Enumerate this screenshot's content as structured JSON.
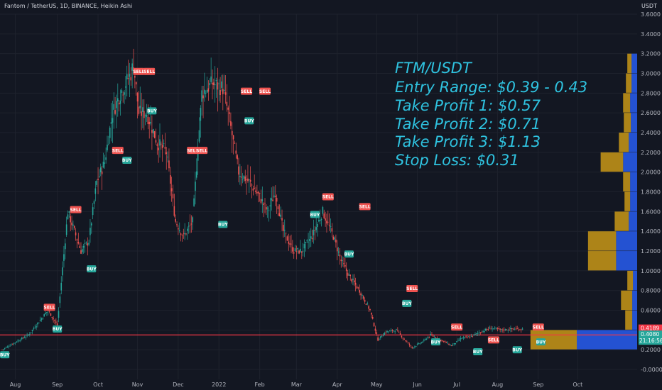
{
  "header": {
    "symbol_line": "Fantom / TetherUS, 1D, BINANCE, Heikin Ashi",
    "quote_currency": "USDT"
  },
  "annotation": {
    "lines": [
      "FTM/USDT",
      "Entry Range: $0.39 - 0.43",
      "Take Profit 1: $0.57",
      "Take Profit 2: $0.71",
      "Take Profit 3: $1.13",
      "Stop Loss: $0.31"
    ]
  },
  "price_labels": {
    "upper": "0.4189",
    "current": "0.4080",
    "countdown": "21:16:56"
  },
  "colors": {
    "background": "#131722",
    "up": "#26a69a",
    "down": "#ef5350",
    "annotation": "#2fc3e0",
    "buy": "#26a69a",
    "sell": "#ef5350",
    "vp_up": "#2962ff",
    "vp_down": "#d4a017",
    "hline": "#f23645"
  },
  "chart_data": {
    "type": "candlestick",
    "title": "Fantom / TetherUS, 1D, BINANCE, Heikin Ashi",
    "ylabel": "USDT",
    "ylim": [
      -0.1,
      3.6
    ],
    "y_ticks": [
      "3.6000",
      "3.4000",
      "3.2000",
      "3.0000",
      "2.8000",
      "2.6000",
      "2.4000",
      "2.2000",
      "2.0000",
      "1.8000",
      "1.6000",
      "1.4000",
      "1.2000",
      "1.0000",
      "0.8000",
      "0.6000",
      "0.4000",
      "0.2000",
      "-0.0000"
    ],
    "y_tick_values": [
      3.6,
      3.4,
      3.2,
      3.0,
      2.8,
      2.6,
      2.4,
      2.2,
      2.0,
      1.8,
      1.6,
      1.4,
      1.2,
      1.0,
      0.8,
      0.6,
      0.4,
      0.2,
      0.0
    ],
    "x_ticks": [
      "Aug",
      "Sep",
      "Oct",
      "Nov",
      "Dec",
      "2022",
      "Feb",
      "Mar",
      "Apr",
      "May",
      "Jun",
      "Jul",
      "Aug",
      "Sep",
      "Oct"
    ],
    "x_tick_index": [
      10,
      42,
      73,
      103,
      134,
      165,
      196,
      224,
      255,
      285,
      316,
      346,
      377,
      408,
      438
    ],
    "horizontal_line": 0.35,
    "price_path": {
      "index": [
        0,
        20,
        35,
        42,
        50,
        60,
        66,
        72,
        78,
        84,
        90,
        98,
        100,
        104,
        110,
        118,
        125,
        132,
        138,
        145,
        152,
        160,
        168,
        172,
        176,
        180,
        188,
        196,
        202,
        208,
        214,
        222,
        228,
        236,
        244,
        252,
        258,
        264,
        272,
        280,
        286,
        292,
        300,
        305,
        312,
        320,
        326,
        334,
        342,
        350,
        356,
        364,
        372,
        380,
        388,
        396
      ],
      "price": [
        0.2,
        0.35,
        0.6,
        0.45,
        1.6,
        1.2,
        1.3,
        1.9,
        2.1,
        2.6,
        2.8,
        3.0,
        3.1,
        2.6,
        2.6,
        2.3,
        2.2,
        1.5,
        1.35,
        1.5,
        2.8,
        2.9,
        2.85,
        2.6,
        2.3,
        2.0,
        1.9,
        1.75,
        1.6,
        1.8,
        1.4,
        1.2,
        1.2,
        1.35,
        1.6,
        1.35,
        1.1,
        0.95,
        0.8,
        0.6,
        0.3,
        0.38,
        0.4,
        0.32,
        0.22,
        0.28,
        0.35,
        0.3,
        0.24,
        0.32,
        0.33,
        0.38,
        0.42,
        0.4,
        0.41,
        0.41
      ]
    },
    "signals": [
      {
        "index": 2,
        "label": "BUY",
        "price": 0.15
      },
      {
        "index": 36,
        "label": "SELL",
        "price": 0.63
      },
      {
        "index": 42,
        "label": "BUY",
        "price": 0.41
      },
      {
        "index": 56,
        "label": "SELL",
        "price": 1.62
      },
      {
        "index": 68,
        "label": "BUY",
        "price": 1.02
      },
      {
        "index": 88,
        "label": "SELL",
        "price": 2.22
      },
      {
        "index": 95,
        "label": "BUY",
        "price": 2.12
      },
      {
        "index": 104,
        "label": "SELL",
        "price": 3.02
      },
      {
        "index": 112,
        "label": "SELL",
        "price": 3.02
      },
      {
        "index": 114,
        "label": "BUY",
        "price": 2.62
      },
      {
        "index": 145,
        "label": "SELL",
        "price": 2.22
      },
      {
        "index": 152,
        "label": "SELL",
        "price": 2.22
      },
      {
        "index": 168,
        "label": "BUY",
        "price": 1.47
      },
      {
        "index": 186,
        "label": "SELL",
        "price": 2.82
      },
      {
        "index": 188,
        "label": "BUY",
        "price": 2.52
      },
      {
        "index": 200,
        "label": "SELL",
        "price": 2.82
      },
      {
        "index": 248,
        "label": "SELL",
        "price": 1.75
      },
      {
        "index": 238,
        "label": "BUY",
        "price": 1.57
      },
      {
        "index": 264,
        "label": "BUY",
        "price": 1.17
      },
      {
        "index": 276,
        "label": "SELL",
        "price": 1.65
      },
      {
        "index": 312,
        "label": "SELL",
        "price": 0.82
      },
      {
        "index": 308,
        "label": "BUY",
        "price": 0.67
      },
      {
        "index": 330,
        "label": "BUY",
        "price": 0.28
      },
      {
        "index": 346,
        "label": "SELL",
        "price": 0.43
      },
      {
        "index": 362,
        "label": "BUY",
        "price": 0.18
      },
      {
        "index": 374,
        "label": "SELL",
        "price": 0.3
      },
      {
        "index": 392,
        "label": "BUY",
        "price": 0.2
      },
      {
        "index": 408,
        "label": "SELL",
        "price": 0.43
      },
      {
        "index": 410,
        "label": "BUY",
        "price": 0.28
      }
    ],
    "volume_profile": [
      {
        "price": 3.1,
        "up": 0.08,
        "down": 0.06
      },
      {
        "price": 2.9,
        "up": 0.08,
        "down": 0.08
      },
      {
        "price": 2.7,
        "up": 0.1,
        "down": 0.1
      },
      {
        "price": 2.5,
        "up": 0.09,
        "down": 0.1
      },
      {
        "price": 2.3,
        "up": 0.12,
        "down": 0.14
      },
      {
        "price": 2.1,
        "up": 0.2,
        "down": 0.32
      },
      {
        "price": 1.9,
        "up": 0.1,
        "down": 0.1
      },
      {
        "price": 1.7,
        "up": 0.1,
        "down": 0.08
      },
      {
        "price": 1.5,
        "up": 0.12,
        "down": 0.2
      },
      {
        "price": 1.3,
        "up": 0.3,
        "down": 0.4
      },
      {
        "price": 1.1,
        "up": 0.3,
        "down": 0.4
      },
      {
        "price": 0.9,
        "up": 0.06,
        "down": 0.08
      },
      {
        "price": 0.7,
        "up": 0.07,
        "down": 0.16
      },
      {
        "price": 0.5,
        "up": 0.07,
        "down": 0.1
      },
      {
        "price": 0.3,
        "up": 0.86,
        "down": 0.66
      }
    ]
  }
}
